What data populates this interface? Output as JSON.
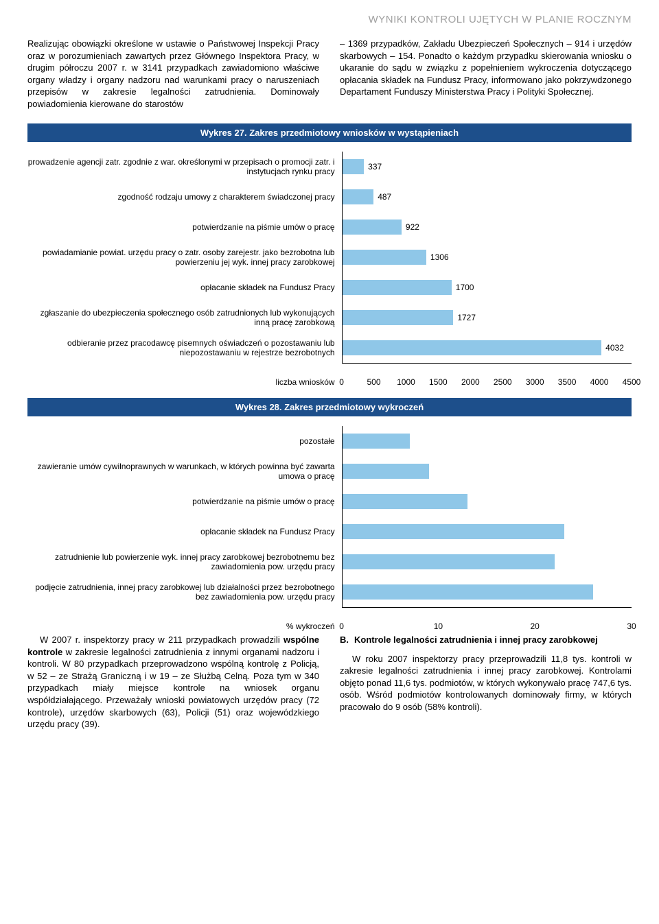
{
  "header": "WYNIKI KONTROLI UJĘTYCH W PLANIE ROCZNYM",
  "intro_left": "Realizując obowiązki określone w ustawie o Państwowej Inspekcji Pracy oraz w porozumieniach zawartych przez Głównego Inspektora Pracy, w drugim półroczu 2007 r. w 3141 przypadkach zawiadomiono właściwe organy władzy i organy nadzoru nad warunkami pracy o naruszeniach przepisów w zakresie legalności zatrudnienia. Dominowały powiadomienia kierowane do starostów",
  "intro_right": "– 1369 przypadków, Zakładu Ubezpieczeń Społecznych – 914 i urzędów skarbowych – 154. Ponadto o każdym przypadku skierowania wniosku o ukaranie do sądu w związku z popełnieniem wykroczenia dotyczącego opłacania składek na Fundusz Pracy, informowano jako pokrzywdzonego Departament Funduszy Ministerstwa Pracy i Polityki Społecznej.",
  "chart27": {
    "title": "Wykres 27. Zakres przedmiotowy wniosków w wystąpieniach",
    "type": "bar",
    "bar_color": "#8fc7e8",
    "axis_label": "liczba wniosków",
    "xmax": 4500,
    "x_ticks": [
      0,
      500,
      1000,
      1500,
      2000,
      2500,
      3000,
      3500,
      4000,
      4500
    ],
    "rows": [
      {
        "label": "prowadzenie agencji zatr. zgodnie z war. określonymi w przepisach o promocji zatr. i instytucjach rynku pracy",
        "value": 337
      },
      {
        "label": "zgodność rodzaju umowy z charakterem świadczonej pracy",
        "value": 487
      },
      {
        "label": "potwierdzanie na piśmie umów o pracę",
        "value": 922
      },
      {
        "label": "powiadamianie powiat. urzędu pracy o zatr. osoby zarejestr. jako bezrobotna lub powierzeniu jej wyk. innej pracy zarobkowej",
        "value": 1306
      },
      {
        "label": "opłacanie składek na Fundusz Pracy",
        "value": 1700
      },
      {
        "label": "zgłaszanie do ubezpieczenia społecznego osób zatrudnionych lub wykonujących inną pracę zarobkową",
        "value": 1727
      },
      {
        "label": "odbieranie przez pracodawcę pisemnych oświadczeń o pozostawaniu lub niepozostawaniu w rejestrze bezrobotnych",
        "value": 4032
      }
    ]
  },
  "chart28": {
    "title": "Wykres 28. Zakres przedmiotowy wykroczeń",
    "type": "bar",
    "bar_color": "#8fc7e8",
    "axis_label": "% wykroczeń",
    "xmax": 30,
    "x_ticks": [
      0,
      10,
      20,
      30
    ],
    "rows": [
      {
        "label": "pozostałe",
        "value": 7
      },
      {
        "label": "zawieranie umów cywilnoprawnych w warunkach, w których powinna być zawarta umowa o pracę",
        "value": 9
      },
      {
        "label": "potwierdzanie na piśmie umów o pracę",
        "value": 13
      },
      {
        "label": "opłacanie składek na Fundusz Pracy",
        "value": 23
      },
      {
        "label": "zatrudnienie lub powierzenie wyk. innej pracy zarobkowej bezrobotnemu bez zawiadomienia pow. urzędu pracy",
        "value": 22
      },
      {
        "label": "podjęcie zatrudnienia, innej pracy zarobkowej lub działalności przez bezrobotnego bez zawiadomienia pow. urzędu pracy",
        "value": 26
      }
    ]
  },
  "outro_left_1": "W 2007 r. inspektorzy pracy w 211 przypadkach prowadzili ",
  "outro_left_bold": "wspólne kontrole",
  "outro_left_2": " w zakresie legalności zatrudnienia z innymi organami nadzoru i kontroli. W 80 przypadkach przeprowadzono wspólną kontrolę z Policją, w 52 – ze Strażą Graniczną i w 19 – ze Służbą Celną. Poza tym w 340 przypadkach miały miejsce kontrole na wniosek organu współdziałającego. Przeważały wnioski powiatowych urzędów pracy (72 kontrole), urzędów skarbowych (63), Policji (51) oraz wojewódzkiego urzędu pracy (39).",
  "section_b_letter": "B.",
  "section_b_title": "Kontrole legalności zatrudnienia i innej pracy zarobkowej",
  "outro_right": "W roku 2007 inspektorzy pracy przeprowadzili 11,8 tys. kontroli w zakresie legalności zatrudnienia i innej pracy zarobkowej. Kontrolami objęto ponad 11,6 tys. podmiotów, w których wykonywało pracę 747,6 tys. osób. Wśród podmiotów kontrolowanych dominowały firmy, w których pracowało do 9 osób (58% kontroli)."
}
